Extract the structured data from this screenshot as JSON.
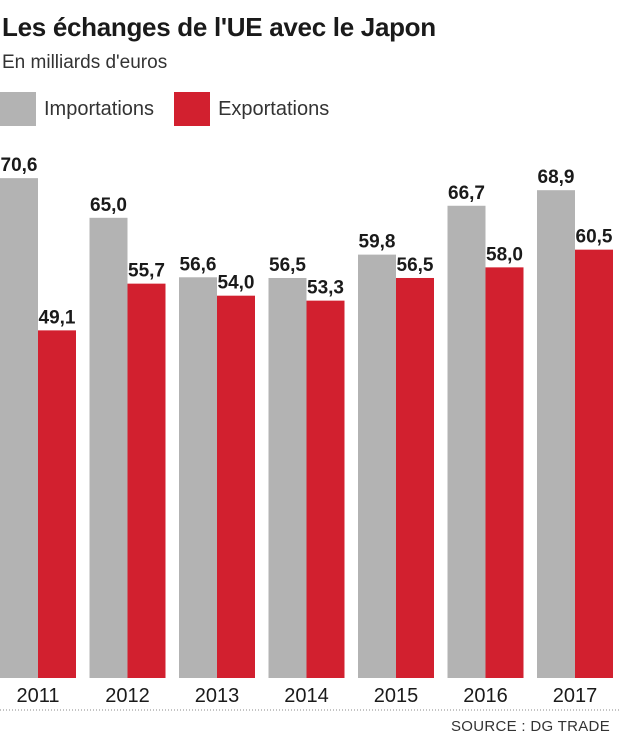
{
  "header": {
    "title": "Les échanges de l'UE avec le Japon",
    "subtitle": "En milliards d'euros"
  },
  "legend": {
    "items": [
      {
        "label": "Importations",
        "color": "#b3b3b3"
      },
      {
        "label": "Exportations",
        "color": "#d2202f"
      }
    ]
  },
  "footer": {
    "source": "SOURCE : DG TRADE"
  },
  "chart_data": {
    "type": "bar",
    "title": "Les échanges de l'UE avec le Japon",
    "subtitle": "En milliards d'euros",
    "xlabel": "",
    "ylabel": "",
    "categories": [
      "2011",
      "2012",
      "2013",
      "2014",
      "2015",
      "2016",
      "2017"
    ],
    "series": [
      {
        "name": "Importations",
        "color": "#b3b3b3",
        "values": [
          70.6,
          65.0,
          56.6,
          56.5,
          59.8,
          66.7,
          68.9
        ],
        "labels": [
          "70,6",
          "65,0",
          "56,6",
          "56,5",
          "59,8",
          "66,7",
          "68,9"
        ]
      },
      {
        "name": "Exportations",
        "color": "#d2202f",
        "values": [
          49.1,
          55.7,
          54.0,
          53.3,
          56.5,
          58.0,
          60.5
        ],
        "labels": [
          "49,1",
          "55,7",
          "54,0",
          "53,3",
          "56,5",
          "58,0",
          "60,5"
        ]
      }
    ],
    "legend_position": "top-left",
    "grid": false,
    "source": "SOURCE : DG TRADE"
  }
}
